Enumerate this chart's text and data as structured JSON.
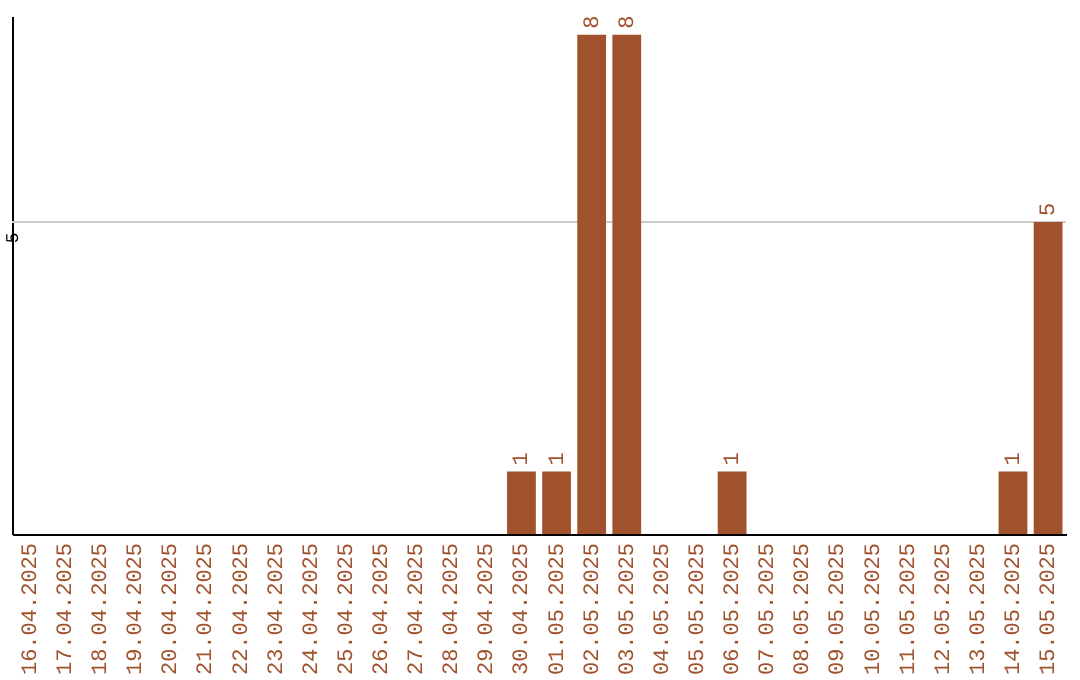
{
  "chart_data": {
    "type": "bar",
    "categories": [
      "16.04.2025",
      "17.04.2025",
      "18.04.2025",
      "19.04.2025",
      "20.04.2025",
      "21.04.2025",
      "22.04.2025",
      "23.04.2025",
      "24.04.2025",
      "25.04.2025",
      "26.04.2025",
      "27.04.2025",
      "28.04.2025",
      "29.04.2025",
      "30.04.2025",
      "01.05.2025",
      "02.05.2025",
      "03.05.2025",
      "04.05.2025",
      "05.05.2025",
      "06.05.2025",
      "07.05.2025",
      "08.05.2025",
      "09.05.2025",
      "10.05.2025",
      "11.05.2025",
      "12.05.2025",
      "13.05.2025",
      "14.05.2025",
      "15.05.2025"
    ],
    "values": [
      null,
      null,
      null,
      null,
      null,
      null,
      null,
      null,
      null,
      null,
      null,
      null,
      null,
      null,
      1,
      1,
      8,
      8,
      null,
      null,
      1,
      null,
      null,
      null,
      null,
      null,
      null,
      null,
      1,
      5
    ],
    "data_labels": true,
    "color": "#a0522d",
    "ylim": [
      0,
      8.3
    ],
    "ref_lines": [
      {
        "axis": "y",
        "value": 5,
        "label": "5",
        "color": "#cccccc"
      }
    ]
  }
}
